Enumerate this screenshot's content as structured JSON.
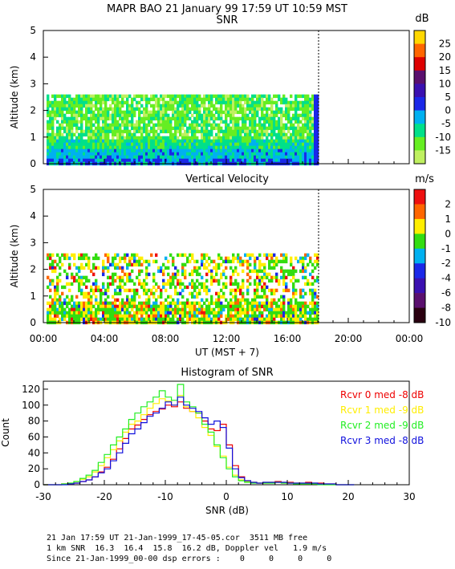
{
  "header": {
    "title": "MAPR BAO 21 January 99   17:59 UT   10:59   MST",
    "subtitle": "SNR"
  },
  "chart_data": [
    {
      "type": "heatmap",
      "title": "SNR",
      "ylabel": "Altitude (km)",
      "ylim": [
        0,
        5
      ],
      "yticks": [
        "0",
        "1",
        "2",
        "3",
        "4",
        "5"
      ],
      "colorbar_unit": "dB",
      "colorbar_labels": [
        "25",
        "20",
        "15",
        "10",
        "5",
        "0",
        "-5",
        "-10",
        "-15"
      ],
      "colorbar_colors": [
        "#ffd700",
        "#ff6600",
        "#dd0000",
        "#5a0f6e",
        "#3a10b0",
        "#1a28e8",
        "#00b0f0",
        "#00e08a",
        "#66ee22",
        "#bff060"
      ],
      "data_top_altitude_km": 2.6,
      "data_end_time": "17:59",
      "marker_time": "17:59"
    },
    {
      "type": "heatmap",
      "title": "Vertical Velocity",
      "ylabel": "Altitude (km)",
      "ylim": [
        0,
        5
      ],
      "yticks": [
        "0",
        "1",
        "2",
        "3",
        "4",
        "5"
      ],
      "xlabel": "UT  (MST + 7)",
      "xticks": [
        "00:00",
        "04:00",
        "08:00",
        "12:00",
        "16:00",
        "20:00",
        "00:00"
      ],
      "colorbar_unit": "m/s",
      "colorbar_labels": [
        "2",
        "1",
        "0",
        "-1",
        "-2",
        "-4",
        "-6",
        "-8",
        "-10"
      ],
      "colorbar_colors": [
        "#ee1010",
        "#ff6600",
        "#ffee00",
        "#33dd11",
        "#00b0f0",
        "#1a28e8",
        "#3a10b0",
        "#5a0f6e",
        "#2a0010"
      ],
      "data_top_altitude_km": 2.6,
      "marker_time": "17:59"
    },
    {
      "type": "line",
      "title": "Histogram of SNR",
      "xlabel": "SNR (dB)",
      "ylabel": "Count",
      "xlim": [
        -30,
        30
      ],
      "ylim": [
        0,
        130
      ],
      "xticks": [
        -30,
        -20,
        -10,
        0,
        10,
        20,
        30
      ],
      "yticks": [
        0,
        20,
        40,
        60,
        80,
        100,
        120
      ],
      "x": [
        -30,
        -29,
        -28,
        -27,
        -26,
        -25,
        -24,
        -23,
        -22,
        -21,
        -20,
        -19,
        -18,
        -17,
        -16,
        -15,
        -14,
        -13,
        -12,
        -11,
        -10,
        -9,
        -8,
        -7,
        -6,
        -5,
        -4,
        -3,
        -2,
        -1,
        0,
        1,
        2,
        3,
        4,
        5,
        6,
        7,
        8,
        9,
        10,
        11,
        12,
        13,
        14,
        15,
        16,
        17,
        18,
        19,
        20
      ],
      "series": [
        {
          "name": "Rcvr 0 med  -8 dB",
          "color": "#ee0000",
          "values": [
            0,
            0,
            0,
            1,
            1,
            2,
            4,
            6,
            10,
            16,
            22,
            32,
            45,
            58,
            70,
            75,
            82,
            88,
            92,
            95,
            100,
            98,
            104,
            96,
            92,
            90,
            80,
            70,
            68,
            76,
            50,
            24,
            10,
            5,
            3,
            2,
            3,
            3,
            4,
            3,
            3,
            2,
            2,
            3,
            2,
            2,
            1,
            1,
            0,
            0,
            0
          ]
        },
        {
          "name": "Rcvr 1 med  -9 dB",
          "color": "#ffee00",
          "values": [
            0,
            0,
            0,
            1,
            2,
            4,
            7,
            10,
            16,
            24,
            34,
            44,
            55,
            66,
            76,
            80,
            88,
            96,
            102,
            108,
            105,
            100,
            112,
            98,
            92,
            84,
            72,
            62,
            48,
            36,
            22,
            12,
            6,
            4,
            3,
            2,
            2,
            3,
            3,
            2,
            2,
            2,
            1,
            1,
            1,
            1,
            0,
            0,
            0,
            0,
            0
          ]
        },
        {
          "name": "Rcvr 2 med  -9 dB",
          "color": "#22ee22",
          "values": [
            0,
            0,
            0,
            1,
            2,
            4,
            8,
            12,
            18,
            28,
            38,
            50,
            60,
            70,
            82,
            90,
            98,
            104,
            110,
            118,
            110,
            106,
            126,
            104,
            98,
            90,
            76,
            66,
            50,
            34,
            20,
            10,
            5,
            3,
            2,
            2,
            2,
            2,
            3,
            2,
            2,
            1,
            1,
            1,
            1,
            0,
            0,
            0,
            0,
            0,
            0
          ]
        },
        {
          "name": "Rcvr 3 med  -8 dB",
          "color": "#1010dd",
          "values": [
            0,
            0,
            0,
            0,
            1,
            2,
            4,
            6,
            10,
            15,
            20,
            30,
            40,
            52,
            64,
            70,
            78,
            86,
            90,
            96,
            104,
            100,
            110,
            100,
            96,
            92,
            84,
            76,
            80,
            72,
            46,
            20,
            9,
            5,
            3,
            2,
            3,
            3,
            3,
            3,
            2,
            2,
            2,
            2,
            2,
            1,
            1,
            1,
            0,
            0,
            0
          ]
        }
      ]
    }
  ],
  "footer": {
    "line1": "21 Jan 17:59 UT 21-Jan-1999_17-45-05.cor  3511 MB free",
    "line2": "1 km SNR  16.3  16.4  15.8  16.2 dB, Doppler vel   1.9 m/s",
    "line3": "Since 21-Jan-1999_00-00 dsp errors :    0     0     0     0"
  }
}
